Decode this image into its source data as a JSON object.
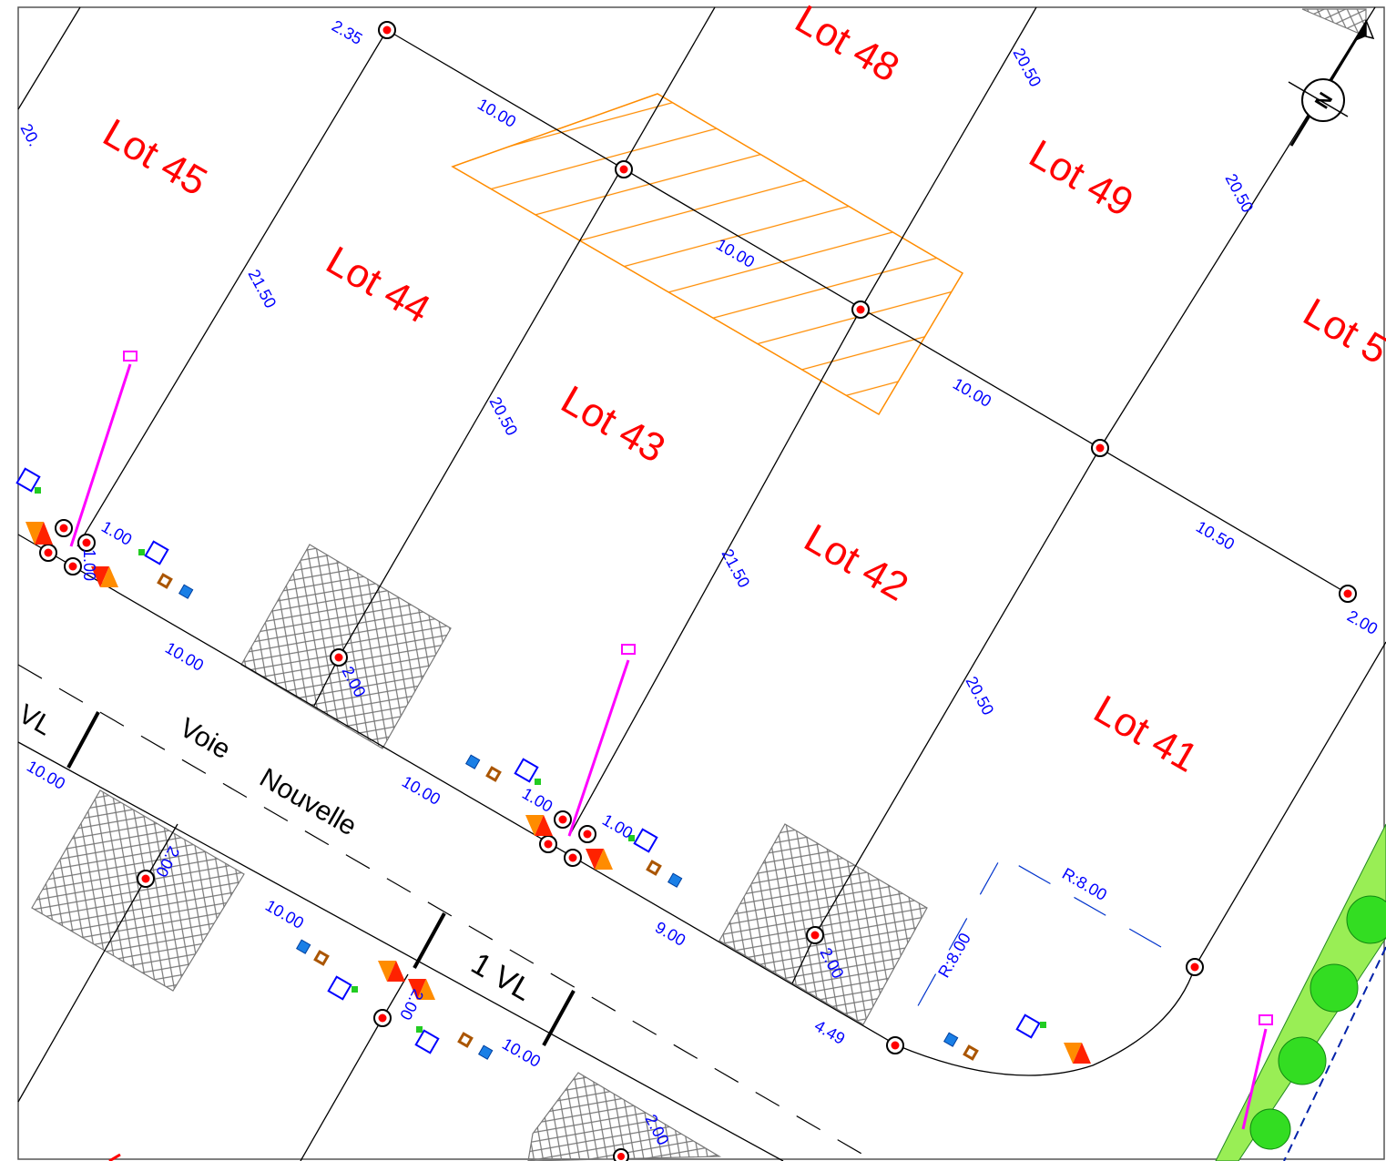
{
  "lots": {
    "lot45": "Lot 45",
    "lot44": "Lot 44",
    "lot43": "Lot 43",
    "lot42": "Lot 42",
    "lot41": "Lot 41",
    "lot48": "Lot 48",
    "lot49": "Lot 49",
    "lot5x": "Lot 5"
  },
  "dimensions": {
    "d_2_35": "2.35",
    "d_top_10a": "10.00",
    "d_top_10b": "10.00",
    "d_top_10c": "10.00",
    "d_top_10_50": "10.50",
    "d_right_2": "2.00",
    "d_20_left": "20.",
    "d_21_50a": "21.50",
    "d_20_50a": "20.50",
    "d_21_50b": "21.50",
    "d_20_50b": "20.50",
    "d_20_50c": "20.50",
    "d_20_50d": "20.50",
    "d_1_00a": "1.00",
    "d_1_00b": "1.00",
    "d_1_00c": "1.00",
    "d_1_00v": "1.00",
    "d_road_10a": "10.00",
    "d_road_10b": "10.00",
    "d_road_9": "9.00",
    "d_road_4_49": "4.49",
    "d_2_00a": "2.00",
    "d_2_00b": "2.00",
    "d_2_00c": "2.00",
    "d_2_00d": "2.00",
    "d_2_00e": "2.00",
    "d_low_10a": "10.00",
    "d_low_10b": "10.00",
    "d_low_10c": "10.00",
    "d_r8a": "R:8.00",
    "d_r8b": "R:8.00"
  },
  "road": {
    "vl_left": "VL",
    "voie": "Voie",
    "nouvelle": "Nouvelle",
    "one_vl": "1 VL"
  },
  "north_arrow": {
    "label": "N"
  },
  "colors": {
    "lot_text": "#ff0000",
    "dimension_text": "#0000ff",
    "boundary_line": "#000000",
    "hatched_zone": "#ff8c00",
    "light_pole": "#ff00ff",
    "green_strip": "#99ee55",
    "tree": "#22cc22",
    "marker": "#ff0000"
  }
}
